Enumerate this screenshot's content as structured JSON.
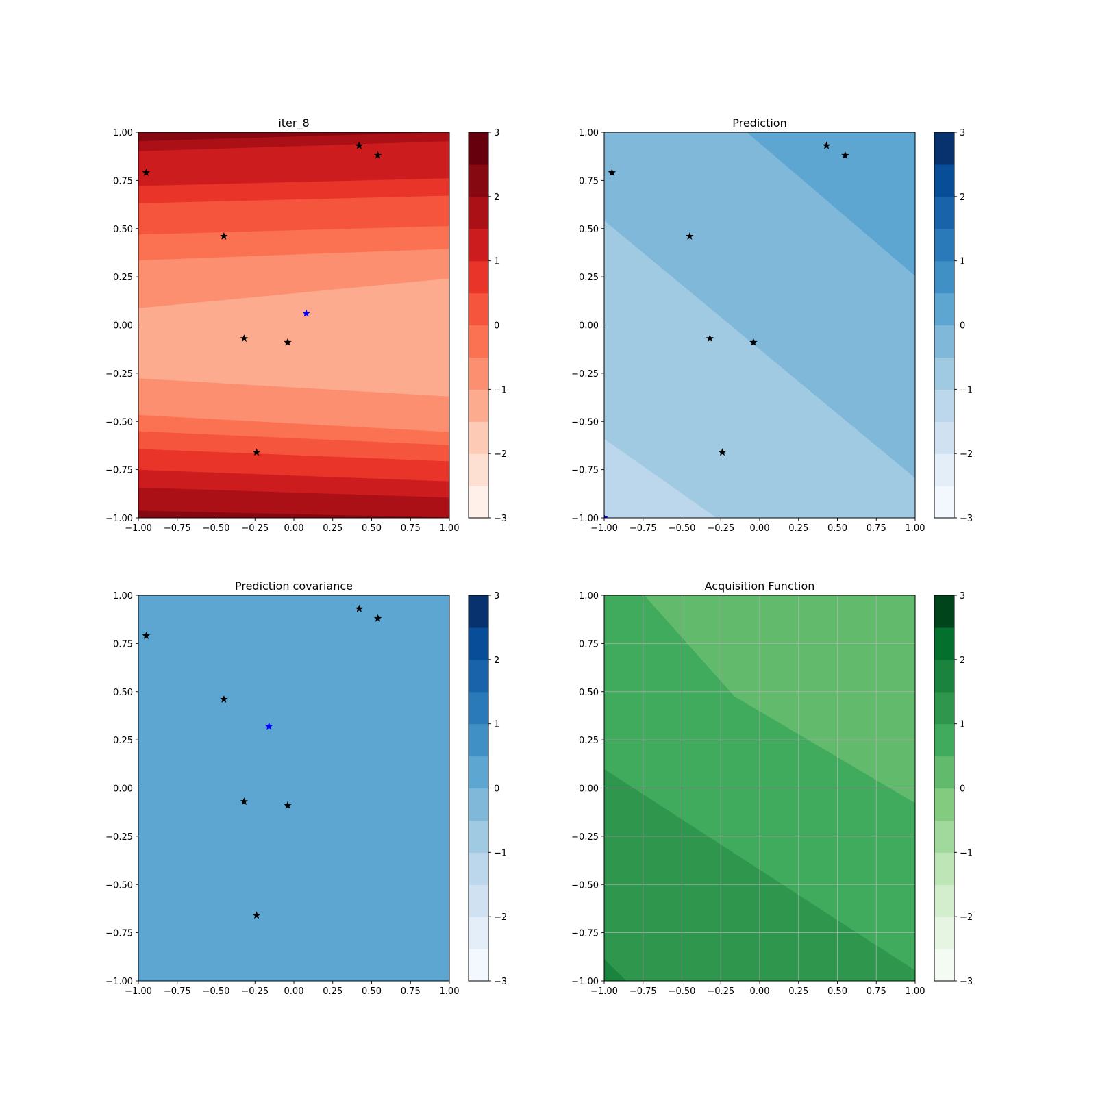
{
  "chart_data": [
    {
      "type": "heatmap",
      "title": "iter_8",
      "cmap": "Reds",
      "colors": [
        "#fff0ea",
        "#fee0d3",
        "#fdcab5",
        "#fcab8f",
        "#fc8f6f",
        "#fb7252",
        "#f5553d",
        "#e83429",
        "#cd1c1e",
        "#ac1017",
        "#860811",
        "#67000d"
      ],
      "xlim": [
        -1,
        1
      ],
      "ylim": [
        -1,
        1
      ],
      "xticks": [
        "−1.00",
        "−0.75",
        "−0.50",
        "−0.25",
        "0.00",
        "0.25",
        "0.50",
        "0.75",
        "1.00"
      ],
      "yticks": [
        "−1.00",
        "−0.75",
        "−0.50",
        "−0.25",
        "0.00",
        "0.25",
        "0.50",
        "0.75",
        "1.00"
      ],
      "colorbar_range": [
        -3,
        3
      ],
      "colorbar_ticks": [
        "−3",
        "−2",
        "−1",
        "0",
        "1",
        "2",
        "3"
      ],
      "grid": false,
      "points": [
        {
          "x": -0.95,
          "y": 0.79,
          "color": "#000000"
        },
        {
          "x": 0.42,
          "y": 0.93,
          "color": "#000000"
        },
        {
          "x": 0.54,
          "y": 0.88,
          "color": "#000000"
        },
        {
          "x": -0.45,
          "y": 0.46,
          "color": "#000000"
        },
        {
          "x": 0.08,
          "y": 0.06,
          "color": "#0000ff"
        },
        {
          "x": -0.32,
          "y": -0.07,
          "color": "#000000"
        },
        {
          "x": -0.04,
          "y": -0.09,
          "color": "#000000"
        },
        {
          "x": -0.24,
          "y": -0.66,
          "color": "#000000"
        }
      ]
    },
    {
      "type": "heatmap",
      "title": "Prediction",
      "cmap": "Blues",
      "colors": [
        "#f3f8fe",
        "#e3eef9",
        "#d0e2f2",
        "#bcd7eb",
        "#9fcae1",
        "#80b8da",
        "#5da6d2",
        "#4090c5",
        "#2a7ab9",
        "#1863aa",
        "#084d97",
        "#08326e"
      ],
      "xlim": [
        -1,
        1
      ],
      "ylim": [
        -1,
        1
      ],
      "xticks": [
        "−1.00",
        "−0.75",
        "−0.50",
        "−0.25",
        "0.00",
        "0.25",
        "0.50",
        "0.75",
        "1.00"
      ],
      "yticks": [
        "−1.00",
        "−0.75",
        "−0.50",
        "−0.25",
        "0.00",
        "0.25",
        "0.50",
        "0.75",
        "1.00"
      ],
      "colorbar_range": [
        -3,
        3
      ],
      "colorbar_ticks": [
        "−3",
        "−2",
        "−1",
        "0",
        "1",
        "2",
        "3"
      ],
      "grid": false,
      "points": [
        {
          "x": -0.95,
          "y": 0.79,
          "color": "#000000"
        },
        {
          "x": 0.43,
          "y": 0.93,
          "color": "#000000"
        },
        {
          "x": 0.55,
          "y": 0.88,
          "color": "#000000"
        },
        {
          "x": -0.45,
          "y": 0.46,
          "color": "#000000"
        },
        {
          "x": -0.32,
          "y": -0.07,
          "color": "#000000"
        },
        {
          "x": -0.04,
          "y": -0.09,
          "color": "#000000"
        },
        {
          "x": -0.24,
          "y": -0.66,
          "color": "#000000"
        },
        {
          "x": -1.0,
          "y": -1.0,
          "color": "#0000ff"
        }
      ]
    },
    {
      "type": "heatmap",
      "title": "Prediction covariance",
      "cmap": "Blues",
      "colors": [
        "#f3f8fe",
        "#e3eef9",
        "#d0e2f2",
        "#bcd7eb",
        "#9fcae1",
        "#80b8da",
        "#5da6d2",
        "#4090c5",
        "#2a7ab9",
        "#1863aa",
        "#084d97",
        "#08326e"
      ],
      "xlim": [
        -1,
        1
      ],
      "ylim": [
        -1,
        1
      ],
      "xticks": [
        "−1.00",
        "−0.75",
        "−0.50",
        "−0.25",
        "0.00",
        "0.25",
        "0.50",
        "0.75",
        "1.00"
      ],
      "yticks": [
        "−1.00",
        "−0.75",
        "−0.50",
        "−0.25",
        "0.00",
        "0.25",
        "0.50",
        "0.75",
        "1.00"
      ],
      "colorbar_range": [
        -3,
        3
      ],
      "colorbar_ticks": [
        "−3",
        "−2",
        "−1",
        "0",
        "1",
        "2",
        "3"
      ],
      "grid": false,
      "points": [
        {
          "x": -0.95,
          "y": 0.79,
          "color": "#000000"
        },
        {
          "x": 0.42,
          "y": 0.93,
          "color": "#000000"
        },
        {
          "x": 0.54,
          "y": 0.88,
          "color": "#000000"
        },
        {
          "x": -0.45,
          "y": 0.46,
          "color": "#000000"
        },
        {
          "x": -0.16,
          "y": 0.32,
          "color": "#0000ff"
        },
        {
          "x": -0.32,
          "y": -0.07,
          "color": "#000000"
        },
        {
          "x": -0.04,
          "y": -0.09,
          "color": "#000000"
        },
        {
          "x": -0.24,
          "y": -0.66,
          "color": "#000000"
        }
      ]
    },
    {
      "type": "heatmap",
      "title": "Acquisition Function",
      "cmap": "Greens",
      "colors": [
        "#f4fbf2",
        "#e5f5e1",
        "#d3eecd",
        "#bde5b5",
        "#a0d99b",
        "#82cb7f",
        "#62bb6d",
        "#41ab5d",
        "#2e964d",
        "#1a843f",
        "#03702e",
        "#00441b"
      ],
      "xlim": [
        -1,
        1
      ],
      "ylim": [
        -1,
        1
      ],
      "xticks": [
        "−1.00",
        "−0.75",
        "−0.50",
        "−0.25",
        "0.00",
        "0.25",
        "0.50",
        "0.75",
        "1.00"
      ],
      "yticks": [
        "−1.00",
        "−0.75",
        "−0.50",
        "−0.25",
        "0.00",
        "0.25",
        "0.50",
        "0.75",
        "1.00"
      ],
      "colorbar_range": [
        -3,
        3
      ],
      "colorbar_ticks": [
        "−3",
        "−2",
        "−1",
        "0",
        "1",
        "2",
        "3"
      ],
      "grid": true,
      "points": []
    }
  ]
}
